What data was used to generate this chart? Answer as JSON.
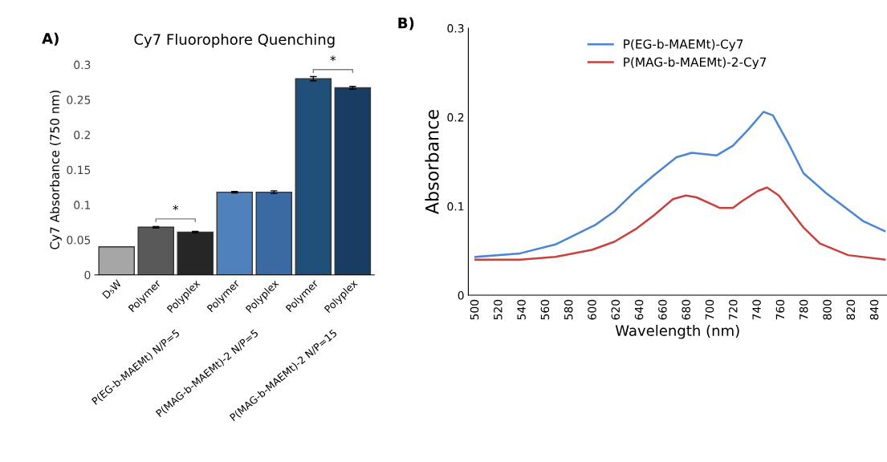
{
  "chart_data": [
    {
      "type": "bar",
      "title": "Cy7 Fluorophore Quenching",
      "ylabel": "Cy7 Absorbance (750 nm)",
      "categories": [
        "D₅W",
        "Polymer",
        "Polyplex",
        "Polymer",
        "Polyplex",
        "Polymer",
        "Polyplex"
      ],
      "values": [
        0.04,
        0.068,
        0.061,
        0.118,
        0.118,
        0.28,
        0.267
      ],
      "errors": [
        null,
        0.001,
        0.001,
        0.001,
        0.002,
        0.003,
        0.002
      ],
      "colors": [
        "#a6a6a6",
        "#595959",
        "#262626",
        "#4f81bd",
        "#3b6aa3",
        "#1f4e79",
        "#183c62"
      ],
      "ylim": [
        0,
        0.3
      ],
      "yticks": [
        0,
        0.05,
        0.1,
        0.15,
        0.2,
        0.25,
        0.3
      ],
      "grid": false,
      "annotations": [
        "A)",
        "*",
        "*",
        "P(EG-b-MAEMt) N/P=5",
        "P(MAG-b-MAEMt)-2 N/P=5",
        "P(MAG-b-MAEMt)-2 N/P=15"
      ]
    },
    {
      "type": "line",
      "xlabel": "Wavelength (nm)",
      "ylabel": "Absorbance",
      "series": [
        {
          "name": "P(EG-b-MAEMt)-Cy7",
          "color": "#4a86d4",
          "x": [
            500,
            538,
            568,
            602,
            618,
            636,
            652,
            671,
            684,
            705,
            719,
            732,
            745,
            753,
            766,
            779,
            798,
            817,
            830,
            848
          ],
          "values": [
            0.043,
            0.047,
            0.057,
            0.079,
            0.094,
            0.117,
            0.135,
            0.155,
            0.16,
            0.157,
            0.168,
            0.186,
            0.206,
            0.202,
            0.171,
            0.137,
            0.115,
            0.096,
            0.083,
            0.072
          ]
        },
        {
          "name": "P(MAG-b-MAEMt)-2-Cy7",
          "color": "#c9403c",
          "x": [
            500,
            538,
            568,
            599,
            618,
            636,
            652,
            668,
            679,
            688,
            708,
            719,
            726,
            740,
            748,
            758,
            779,
            793,
            817,
            848
          ],
          "values": [
            0.04,
            0.04,
            0.043,
            0.051,
            0.06,
            0.074,
            0.09,
            0.108,
            0.112,
            0.11,
            0.098,
            0.098,
            0.105,
            0.117,
            0.121,
            0.112,
            0.076,
            0.058,
            0.045,
            0.04
          ]
        }
      ],
      "xlim": [
        494,
        850
      ],
      "xticks": [
        500,
        520,
        540,
        560,
        580,
        600,
        620,
        640,
        660,
        680,
        700,
        720,
        740,
        760,
        780,
        800,
        820,
        840
      ],
      "ylim": [
        0,
        0.3
      ],
      "yticks": [
        0,
        0.1,
        0.2,
        0.3
      ],
      "grid": false,
      "legend": "top",
      "annotations": [
        "B)"
      ]
    }
  ]
}
